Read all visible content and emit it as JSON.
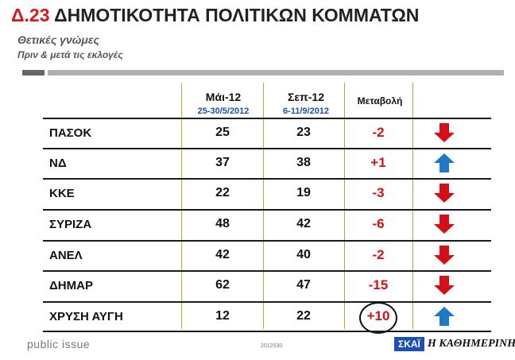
{
  "header": {
    "title_num": "Δ.23",
    "title_text": "ΔΗΜΟΤΙΚΟΤΗΤΑ ΠΟΛΙΤΙΚΩΝ ΚΟΜΜΑΤΩΝ",
    "subtitle": "Θετικές γνώμες",
    "subtitle2": "Πριν & μετά τις εκλογές"
  },
  "chart_data": {
    "type": "table",
    "columns": [
      {
        "label": "Μάι-12",
        "dates": "25-30/5/2012"
      },
      {
        "label": "Σεπ-12",
        "dates": "6-11/9/2012"
      },
      {
        "label": "Μεταβολή",
        "dates": ""
      }
    ],
    "rows": [
      {
        "party": "ΠΑΣΟΚ",
        "may": 25,
        "sep": 23,
        "change": "-2",
        "direction": "down"
      },
      {
        "party": "ΝΔ",
        "may": 37,
        "sep": 38,
        "change": "+1",
        "direction": "up"
      },
      {
        "party": "ΚΚΕ",
        "may": 22,
        "sep": 19,
        "change": "-3",
        "direction": "down"
      },
      {
        "party": "ΣΥΡΙΖΑ",
        "may": 48,
        "sep": 42,
        "change": "-6",
        "direction": "down"
      },
      {
        "party": "ΑΝΕΛ",
        "may": 42,
        "sep": 40,
        "change": "-2",
        "direction": "down"
      },
      {
        "party": "ΔΗΜΑΡ",
        "may": 62,
        "sep": 47,
        "change": "-15",
        "direction": "down"
      },
      {
        "party": "ΧΡΥΣΗ ΑΥΓΗ",
        "may": 12,
        "sep": 22,
        "change": "+10",
        "direction": "up",
        "circled": true
      }
    ],
    "colors": {
      "down": "#d41016",
      "up": "#1f78c8",
      "change_text": "#d41016"
    }
  },
  "footer": {
    "source": "public issue",
    "code": "2012030",
    "logo1": "ΣΚΑΪ",
    "logo2": "Η ΚΑΘΗΜΕΡΙΝΗ"
  }
}
